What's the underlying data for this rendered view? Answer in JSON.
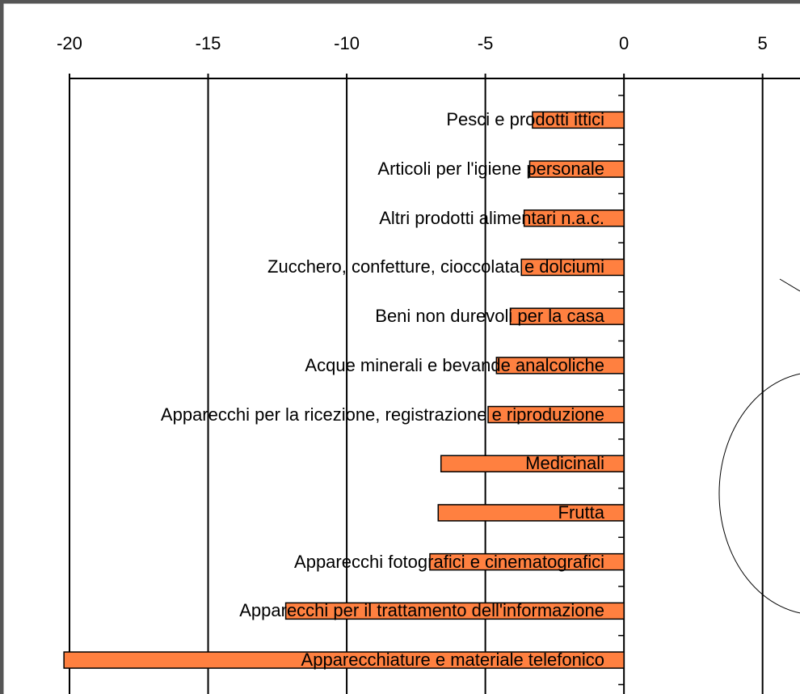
{
  "chart_data": {
    "type": "bar",
    "orientation": "horizontal",
    "categories": [
      "Pesci e prodotti ittici",
      "Articoli per l'igiene personale",
      "Altri prodotti alimentari n.a.c.",
      "Zucchero, confetture, cioccolata e dolciumi",
      "Beni non durevoli per la casa",
      "Acque minerali e bevande analcoliche",
      "Apparecchi per la ricezione, registrazione e riproduzione",
      "Medicinali",
      "Frutta",
      "Apparecchi fotografici e cinematografici",
      "Apparecchi per il trattamento dell'informazione",
      "Apparecchiature e materiale telefonico"
    ],
    "values": [
      -3.3,
      -3.4,
      -3.6,
      -3.7,
      -4.1,
      -4.6,
      -4.9,
      -6.6,
      -6.7,
      -7.0,
      -12.2,
      -20.2
    ],
    "color": "#ff8040",
    "xlim": [
      -20,
      6.35
    ],
    "xticks": [
      -20,
      -15,
      -10,
      -5,
      0,
      5
    ],
    "grid": true
  }
}
